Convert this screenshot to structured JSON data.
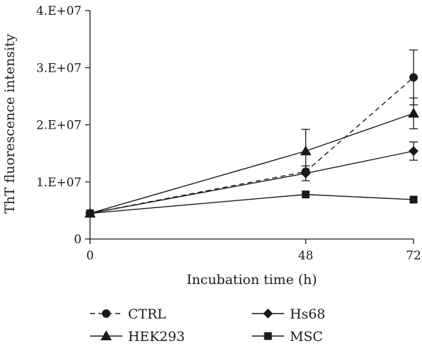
{
  "chart_data": {
    "type": "line",
    "x": [
      0,
      48,
      72
    ],
    "xlabel": "Incubation time (h)",
    "ylabel": "ThT fluorescence intensity",
    "xlim": [
      0,
      72
    ],
    "ylim": [
      0,
      40000000
    ],
    "xticks": [
      0,
      48,
      72
    ],
    "xtick_labels": [
      "0",
      "48",
      "72"
    ],
    "yticks": [
      0,
      10000000,
      20000000,
      30000000,
      40000000
    ],
    "ytick_labels": [
      "0",
      "1.E+07",
      "2.E+07",
      "3.E+07",
      "4.E+07"
    ],
    "grid": false,
    "legend_position": "bottom",
    "series": [
      {
        "name": "CTRL",
        "marker": "circle",
        "dashed": true,
        "color": "#1a1a1a",
        "values": [
          4500000,
          11800000,
          28300000
        ],
        "errors": [
          null,
          null,
          4800000
        ]
      },
      {
        "name": "HEK293",
        "marker": "triangle",
        "dashed": false,
        "color": "#1a1a1a",
        "values": [
          4500000,
          15400000,
          22000000
        ],
        "errors": [
          null,
          3800000,
          2700000
        ]
      },
      {
        "name": "Hs68",
        "marker": "diamond",
        "dashed": false,
        "color": "#1a1a1a",
        "values": [
          4500000,
          11500000,
          15400000
        ],
        "errors": [
          null,
          1300000,
          1600000
        ]
      },
      {
        "name": "MSC",
        "marker": "square",
        "dashed": false,
        "color": "#1a1a1a",
        "values": [
          4500000,
          7800000,
          6900000
        ],
        "errors": [
          null,
          null,
          null
        ]
      }
    ],
    "legend_order": [
      "CTRL",
      "Hs68",
      "HEK293",
      "MSC"
    ]
  }
}
